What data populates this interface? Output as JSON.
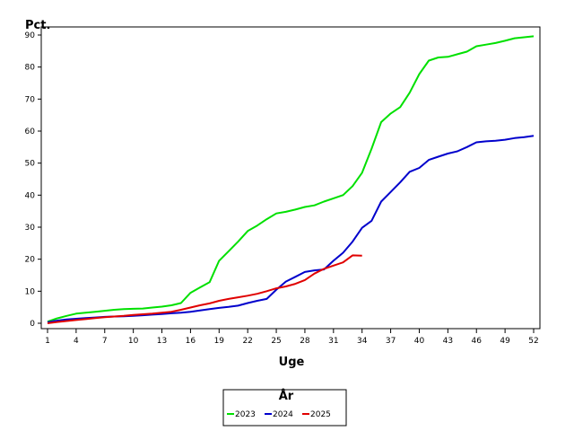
{
  "chart_data": {
    "type": "line",
    "title": "",
    "xlabel": "Uge",
    "ylabel": "Pct.",
    "xlim": [
      1,
      52
    ],
    "ylim": [
      0,
      90
    ],
    "xticks": [
      1,
      4,
      7,
      10,
      13,
      16,
      19,
      22,
      25,
      28,
      31,
      34,
      37,
      40,
      43,
      46,
      49,
      52
    ],
    "yticks": [
      0,
      10,
      20,
      30,
      40,
      50,
      60,
      70,
      80,
      90
    ],
    "legend": {
      "title": "År",
      "placement": "bottom-center"
    },
    "series": [
      {
        "name": "2023",
        "color": "#00e000",
        "x": [
          1,
          2,
          3,
          4,
          5,
          6,
          7,
          8,
          9,
          10,
          11,
          12,
          13,
          14,
          15,
          16,
          17,
          18,
          19,
          20,
          21,
          22,
          23,
          24,
          25,
          26,
          27,
          28,
          29,
          30,
          31,
          32,
          33,
          34,
          35,
          36,
          37,
          38,
          39,
          40,
          41,
          42,
          43,
          44,
          45,
          46,
          47,
          48,
          49,
          50,
          51,
          52
        ],
        "y": [
          0.5,
          1.5,
          2.3,
          3.0,
          3.3,
          3.6,
          3.9,
          4.2,
          4.4,
          4.5,
          4.6,
          4.9,
          5.2,
          5.6,
          6.3,
          9.5,
          11.2,
          12.8,
          19.5,
          22.5,
          25.5,
          28.8,
          30.5,
          32.5,
          34.3,
          34.8,
          35.5,
          36.3,
          36.8,
          38.0,
          39.0,
          40.0,
          42.8,
          47.0,
          54.5,
          62.8,
          65.5,
          67.5,
          72.0,
          77.8,
          82.0,
          83.0,
          83.2,
          84.0,
          84.8,
          86.5,
          87.0,
          87.5,
          88.2,
          89.0,
          89.3,
          89.6
        ]
      },
      {
        "name": "2024",
        "color": "#0000cc",
        "x": [
          1,
          2,
          3,
          4,
          5,
          6,
          7,
          8,
          9,
          10,
          11,
          12,
          13,
          14,
          15,
          16,
          17,
          18,
          19,
          20,
          21,
          22,
          23,
          24,
          25,
          26,
          27,
          28,
          29,
          30,
          31,
          32,
          33,
          34,
          35,
          36,
          37,
          38,
          39,
          40,
          41,
          42,
          43,
          44,
          45,
          46,
          47,
          48,
          49,
          50,
          51,
          52
        ],
        "y": [
          0.3,
          0.8,
          1.2,
          1.4,
          1.6,
          1.8,
          2.0,
          2.1,
          2.2,
          2.3,
          2.5,
          2.7,
          2.9,
          3.1,
          3.3,
          3.6,
          4.0,
          4.4,
          4.8,
          5.1,
          5.5,
          6.3,
          7.0,
          7.6,
          10.5,
          13.0,
          14.5,
          16.0,
          16.5,
          16.8,
          19.5,
          22.0,
          25.5,
          29.8,
          32.0,
          38.0,
          41.0,
          44.0,
          47.3,
          48.5,
          51.0,
          52.0,
          53.0,
          53.7,
          55.0,
          56.5,
          56.8,
          57.0,
          57.3,
          57.8,
          58.1,
          58.5
        ]
      },
      {
        "name": "2025",
        "color": "#e00000",
        "x": [
          1,
          2,
          3,
          4,
          5,
          6,
          7,
          8,
          9,
          10,
          11,
          12,
          13,
          14,
          15,
          16,
          17,
          18,
          19,
          20,
          21,
          22,
          23,
          24,
          25,
          26,
          27,
          28,
          29,
          30,
          31,
          32,
          33,
          34
        ],
        "y": [
          0.0,
          0.4,
          0.7,
          1.0,
          1.3,
          1.6,
          1.9,
          2.1,
          2.3,
          2.6,
          2.8,
          3.0,
          3.3,
          3.6,
          4.2,
          4.9,
          5.6,
          6.2,
          7.0,
          7.6,
          8.1,
          8.6,
          9.2,
          10.0,
          10.9,
          11.5,
          12.3,
          13.5,
          15.5,
          17.0,
          18.0,
          19.0,
          21.2,
          21.1
        ]
      }
    ]
  }
}
